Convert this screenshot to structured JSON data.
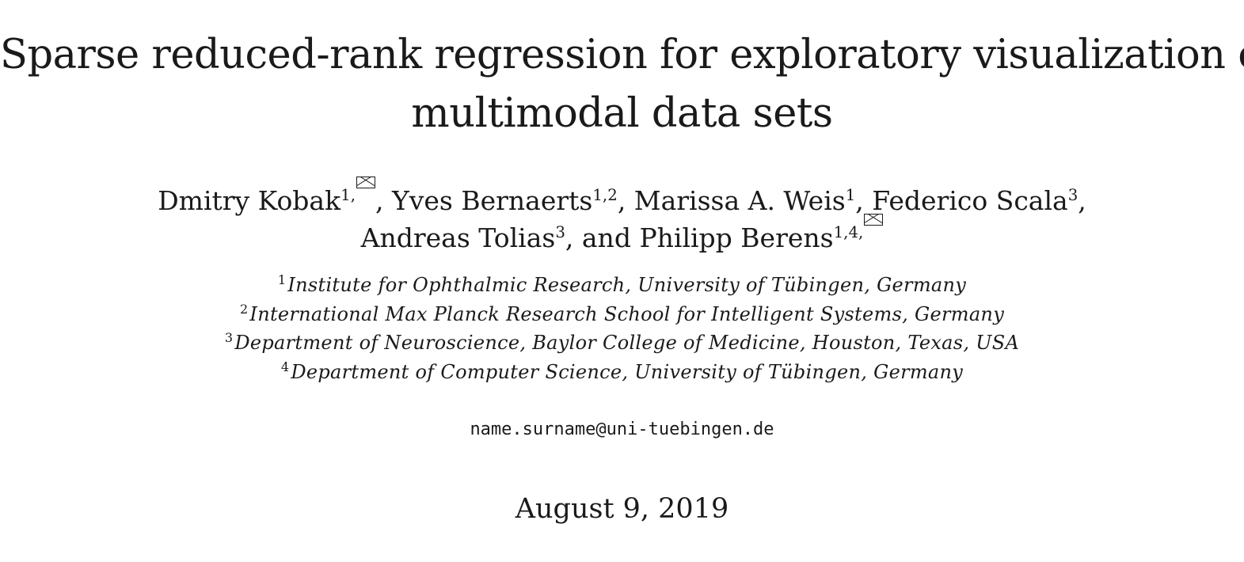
{
  "paper": {
    "title_line1": "Sparse reduced-rank regression for exploratory visualization of",
    "title_line2": "multimodal data sets",
    "authors": [
      {
        "name": "Dmitry Kobak",
        "affil": "1,",
        "corresponding": true,
        "sep": ", "
      },
      {
        "name": "Yves Bernaerts",
        "affil": "1,2",
        "corresponding": false,
        "sep": ", "
      },
      {
        "name": "Marissa A. Weis",
        "affil": "1",
        "corresponding": false,
        "sep": ", "
      },
      {
        "name": "Federico Scala",
        "affil": "3",
        "corresponding": false,
        "sep": ","
      },
      {
        "name": "Andreas Tolias",
        "affil": "3",
        "corresponding": false,
        "sep": ", and "
      },
      {
        "name": "Philipp Berens",
        "affil": "1,4,",
        "corresponding": true,
        "sep": ""
      }
    ],
    "affiliations": [
      {
        "num": "1",
        "text": "Institute for Ophthalmic Research, University of Tübingen, Germany"
      },
      {
        "num": "2",
        "text": "International Max Planck Research School for Intelligent Systems, Germany"
      },
      {
        "num": "3",
        "text": "Department of Neuroscience, Baylor College of Medicine, Houston, Texas, USA"
      },
      {
        "num": "4",
        "text": "Department of Computer Science, University of Tübingen, Germany"
      }
    ],
    "email": "name.surname@uni-tuebingen.de",
    "date": "August 9, 2019",
    "corresponding_icon": "envelope-icon"
  }
}
